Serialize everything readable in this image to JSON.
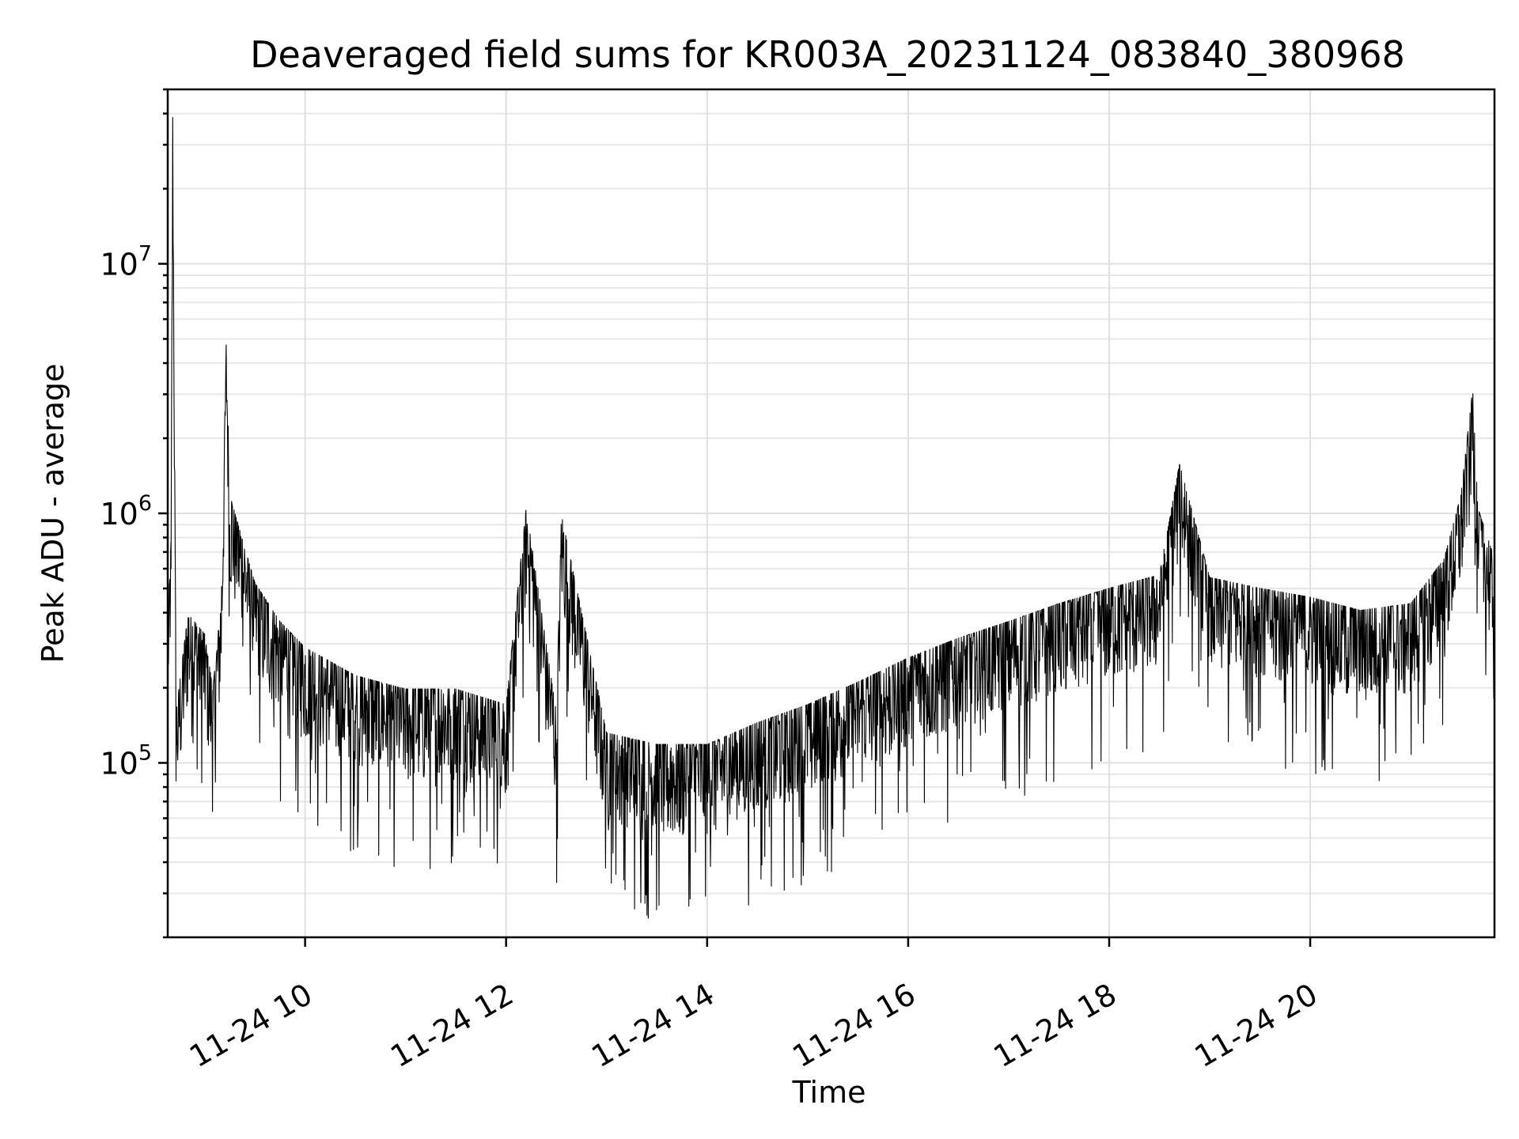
{
  "chart_data": {
    "type": "line",
    "title": "Deaveraged field sums for KR003A_20231124_083840_380968",
    "xlabel": "Time",
    "ylabel": "Peak ADU - average",
    "x_axis": {
      "kind": "datetime",
      "range": [
        "2023-11-24 08:38",
        "2023-11-24 21:50"
      ],
      "tick_labels": [
        "11-24 10",
        "11-24 12",
        "11-24 14",
        "11-24 16",
        "11-24 18",
        "11-24 20"
      ],
      "tick_hours": [
        10,
        12,
        14,
        16,
        18,
        20
      ],
      "tick_label_rotation": 30
    },
    "y_axis": {
      "scale": "log",
      "range": [
        20000,
        50000000
      ],
      "tick_labels": [
        {
          "base": "10",
          "exp": "5",
          "value": 100000
        },
        {
          "base": "10",
          "exp": "6",
          "value": 1000000
        },
        {
          "base": "10",
          "exp": "7",
          "value": 10000000
        }
      ]
    },
    "grid": true,
    "legend": "none",
    "series": [
      {
        "color": "#000000",
        "points": [
          [
            "08:38",
            260000
          ],
          [
            "08:40",
            600000
          ],
          [
            "08:41",
            33000000
          ],
          [
            "08:43",
            120000
          ],
          [
            "08:50",
            300000
          ],
          [
            "09:00",
            250000
          ],
          [
            "09:05",
            150000
          ],
          [
            "09:10",
            350000
          ],
          [
            "09:13",
            3900000
          ],
          [
            "09:15",
            900000
          ],
          [
            "09:30",
            400000
          ],
          [
            "09:45",
            280000
          ],
          [
            "10:00",
            220000
          ],
          [
            "10:30",
            170000
          ],
          [
            "11:00",
            150000
          ],
          [
            "11:30",
            150000
          ],
          [
            "12:00",
            130000
          ],
          [
            "12:12",
            800000
          ],
          [
            "12:30",
            120000
          ],
          [
            "12:33",
            750000
          ],
          [
            "13:00",
            100000
          ],
          [
            "13:30",
            90000
          ],
          [
            "14:00",
            90000
          ],
          [
            "14:30",
            110000
          ],
          [
            "15:00",
            130000
          ],
          [
            "15:30",
            160000
          ],
          [
            "16:00",
            200000
          ],
          [
            "16:30",
            240000
          ],
          [
            "17:00",
            280000
          ],
          [
            "17:30",
            330000
          ],
          [
            "18:00",
            380000
          ],
          [
            "18:30",
            430000
          ],
          [
            "18:42",
            1200000
          ],
          [
            "19:00",
            420000
          ],
          [
            "19:30",
            380000
          ],
          [
            "20:00",
            350000
          ],
          [
            "20:30",
            310000
          ],
          [
            "21:00",
            330000
          ],
          [
            "21:20",
            500000
          ],
          [
            "21:30",
            900000
          ],
          [
            "21:37",
            2400000
          ],
          [
            "21:40",
            800000
          ],
          [
            "21:50",
            500000
          ]
        ]
      }
    ]
  }
}
